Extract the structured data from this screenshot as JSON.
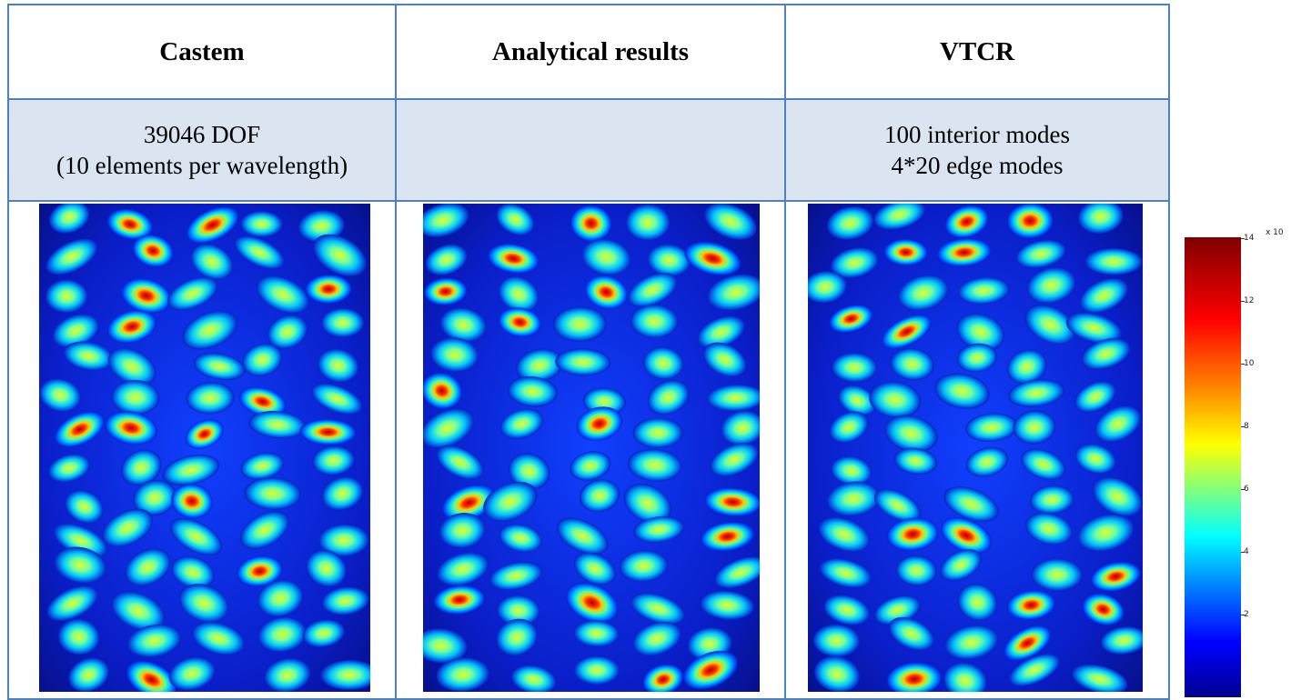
{
  "table": {
    "headers": [
      "Castem",
      "Analytical results",
      "VTCR"
    ],
    "row2": {
      "castem_line1": "39046 DOF",
      "castem_line2": "(10 elements per wavelength)",
      "analytical": "",
      "vtcr_line1": "100 interior modes",
      "vtcr_line2": "4*20 edge modes"
    }
  },
  "colorbar": {
    "exponent": "x 10",
    "ticks": [
      "14",
      "12",
      "10",
      "8",
      "6",
      "4",
      "2"
    ]
  },
  "colors": {
    "table_border": "#4f81bd",
    "row_shade": "#dbe5f1"
  }
}
